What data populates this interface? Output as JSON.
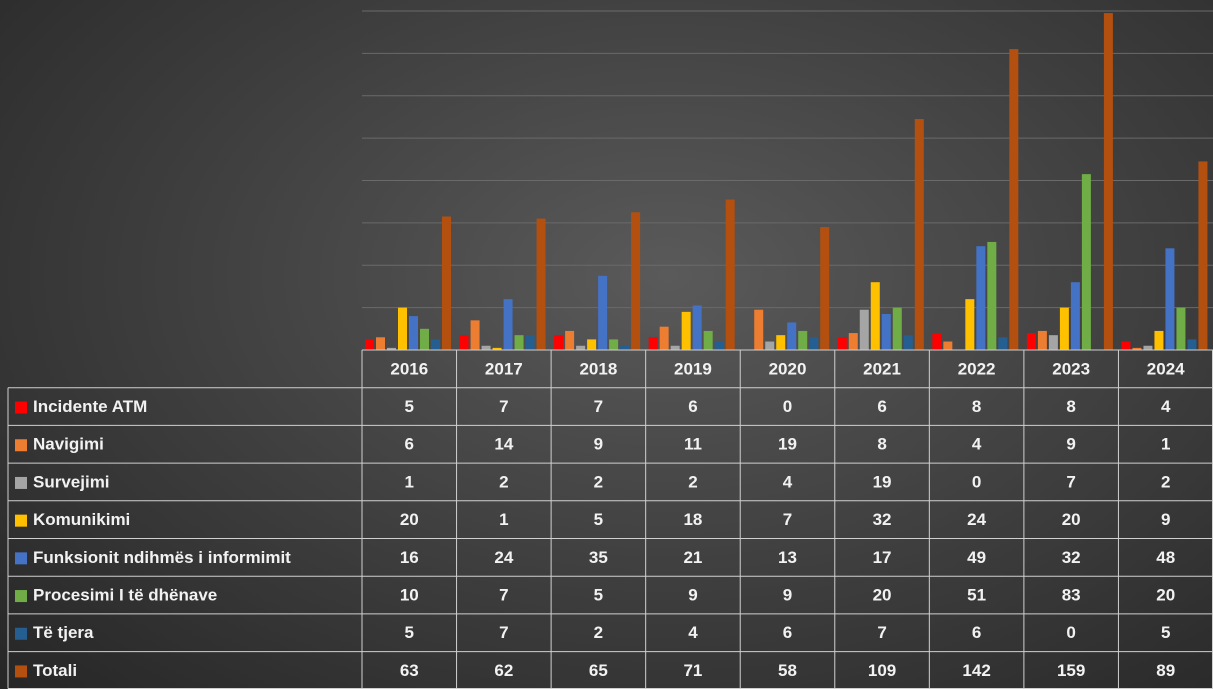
{
  "chart_data": {
    "type": "bar",
    "categories": [
      "2016",
      "2017",
      "2018",
      "2019",
      "2020",
      "2021",
      "2022",
      "2023",
      "2024"
    ],
    "series": [
      {
        "name": "Incidente ATM",
        "color": "#ff0000",
        "values": [
          5,
          7,
          7,
          6,
          0,
          6,
          8,
          8,
          4
        ]
      },
      {
        "name": "Navigimi",
        "color": "#ed7d31",
        "values": [
          6,
          14,
          9,
          11,
          19,
          8,
          4,
          9,
          1
        ]
      },
      {
        "name": "Survejimi",
        "color": "#a5a5a5",
        "values": [
          1,
          2,
          2,
          2,
          4,
          19,
          0,
          7,
          2
        ]
      },
      {
        "name": "Komunikimi",
        "color": "#ffc000",
        "values": [
          20,
          1,
          5,
          18,
          7,
          32,
          24,
          20,
          9
        ]
      },
      {
        "name": "Funksionit ndihmës i informimit",
        "color": "#4472c4",
        "values": [
          16,
          24,
          35,
          21,
          13,
          17,
          49,
          32,
          48
        ]
      },
      {
        "name": "Procesimi I të dhënave",
        "color": "#70ad47",
        "values": [
          10,
          7,
          5,
          9,
          9,
          20,
          51,
          83,
          20
        ]
      },
      {
        "name": "Të tjera",
        "color": "#255e91",
        "values": [
          5,
          7,
          2,
          4,
          6,
          7,
          6,
          0,
          5
        ]
      },
      {
        "name": "Totali",
        "color": "#b4500f",
        "values": [
          63,
          62,
          65,
          71,
          58,
          109,
          142,
          159,
          89
        ]
      }
    ],
    "ylim": [
      0,
      160
    ],
    "yticks": [
      0,
      20,
      40,
      60,
      80,
      100,
      120,
      140,
      160
    ],
    "grid": true
  }
}
